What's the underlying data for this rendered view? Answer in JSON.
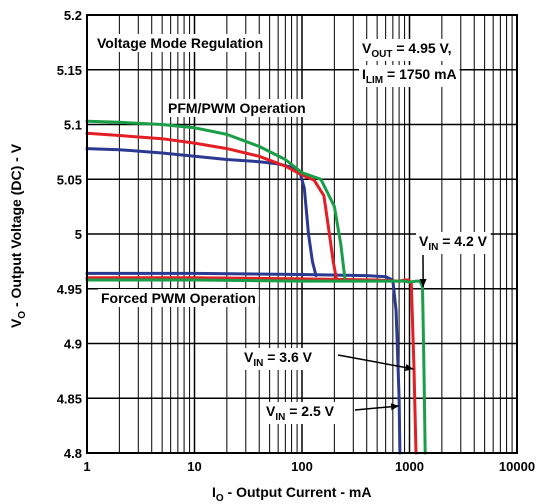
{
  "chart_data": {
    "type": "line",
    "xlabel": {
      "main": "I",
      "sub": "O",
      "rest": " - Output Current - mA"
    },
    "ylabel": {
      "main": "V",
      "sub": "O",
      "rest": " - Output Voltage (DC) - V"
    },
    "xscale": "log",
    "xlim": [
      1,
      10000
    ],
    "ylim": [
      4.8,
      5.2
    ],
    "x_ticks": [
      1,
      10,
      100,
      1000,
      10000
    ],
    "x_tick_labels": [
      "1",
      "10",
      "100",
      "1000",
      "10000"
    ],
    "y_ticks": [
      4.8,
      4.85,
      4.9,
      4.95,
      5.0,
      5.05,
      5.1,
      5.15,
      5.2
    ],
    "y_tick_labels": [
      "4.8",
      "4.85",
      "4.9",
      "4.95",
      "5",
      "5.05",
      "5.1",
      "5.15",
      "5.2"
    ],
    "grid": true,
    "colors": {
      "vin_2_5": "#2b3990",
      "vin_3_6": "#e31e24",
      "vin_4_2": "#1a9e48"
    },
    "annotations": {
      "mode": "Voltage Mode Regulation",
      "pfm": "PFM/PWM Operation",
      "forced": "Forced PWM Operation",
      "vout": {
        "main": "V",
        "sub": "OUT",
        "rest": " = 4.95 V,"
      },
      "ilim": {
        "main": "I",
        "sub": "LIM",
        "rest": " = 1750 mA"
      },
      "vin42": {
        "main": "V",
        "sub": "IN",
        "rest": " = 4.2 V"
      },
      "vin36": {
        "main": "V",
        "sub": "IN",
        "rest": " = 3.6 V"
      },
      "vin25": {
        "main": "V",
        "sub": "IN",
        "rest": " = 2.5 V"
      }
    },
    "series": [
      {
        "key": "vin_2_5_pfm",
        "x": [
          1,
          2,
          5,
          10,
          20,
          40,
          60,
          80,
          95,
          105,
          115,
          125,
          135
        ],
        "y": [
          5.078,
          5.077,
          5.074,
          5.071,
          5.068,
          5.066,
          5.064,
          5.061,
          5.057,
          5.042,
          5.0,
          4.975,
          4.962
        ]
      },
      {
        "key": "vin_2_5_forced",
        "x": [
          1,
          10,
          100,
          400,
          600,
          700,
          750,
          800,
          815
        ],
        "y": [
          4.964,
          4.964,
          4.963,
          4.962,
          4.961,
          4.958,
          4.93,
          4.85,
          4.8
        ]
      },
      {
        "key": "vin_3_6_pfm",
        "x": [
          1,
          2,
          5,
          10,
          20,
          40,
          70,
          100,
          130,
          160,
          180,
          195,
          210
        ],
        "y": [
          5.092,
          5.09,
          5.087,
          5.083,
          5.078,
          5.071,
          5.062,
          5.054,
          5.049,
          5.035,
          5.0,
          4.975,
          4.958
        ]
      },
      {
        "key": "vin_3_6_forced",
        "x": [
          1,
          10,
          100,
          500,
          800,
          900,
          980,
          1040,
          1100,
          1150
        ],
        "y": [
          4.96,
          4.96,
          4.959,
          4.958,
          4.957,
          4.958,
          4.958,
          4.955,
          4.88,
          4.8
        ]
      },
      {
        "key": "vin_4_2_pfm",
        "x": [
          1,
          2,
          5,
          10,
          20,
          40,
          70,
          100,
          150,
          200,
          230,
          250
        ],
        "y": [
          5.103,
          5.102,
          5.1,
          5.097,
          5.091,
          5.08,
          5.068,
          5.056,
          5.05,
          5.025,
          4.99,
          4.96
        ]
      },
      {
        "key": "vin_4_2_forced",
        "x": [
          1,
          10,
          100,
          500,
          900,
          1000,
          1150,
          1250,
          1320,
          1360,
          1400
        ],
        "y": [
          4.958,
          4.958,
          4.957,
          4.957,
          4.957,
          4.956,
          4.957,
          4.957,
          4.952,
          4.88,
          4.8
        ]
      }
    ]
  }
}
